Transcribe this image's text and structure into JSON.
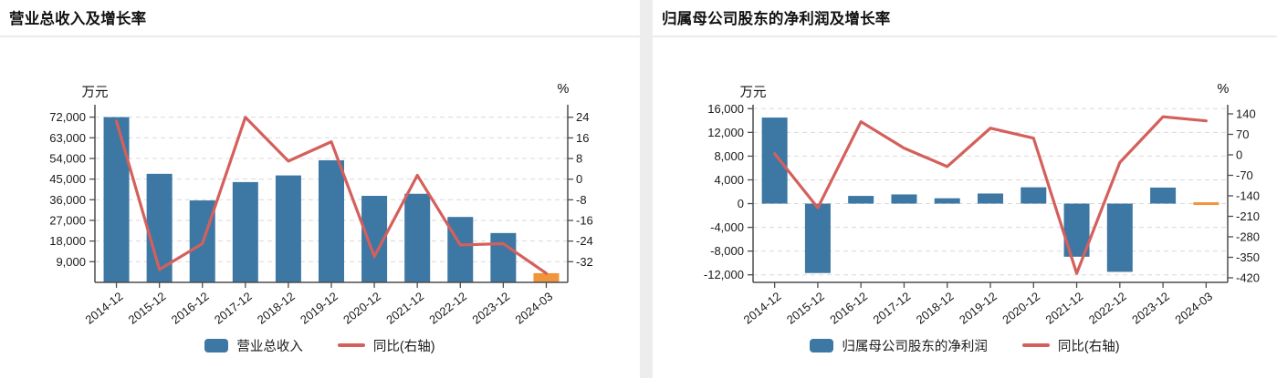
{
  "page": {
    "background": "#ffffff",
    "divider_color": "#ededed"
  },
  "colors": {
    "bar": "#3d77a3",
    "bar_highlight": "#f0953b",
    "line": "#d4605c",
    "grid": "#d9d9d9",
    "axis": "#4d4d4d",
    "text": "#1a1a1a",
    "title": "#111111"
  },
  "charts": [
    {
      "title": "营业总收入及增长率",
      "left_unit": "万元",
      "right_unit": "%",
      "legend": [
        {
          "type": "bar",
          "label": "营业总收入"
        },
        {
          "type": "line",
          "label": "同比(右轴)"
        }
      ],
      "chart_data": {
        "type": "bar+line",
        "categories": [
          "2014-12",
          "2015-12",
          "2016-12",
          "2017-12",
          "2018-12",
          "2019-12",
          "2020-12",
          "2021-12",
          "2022-12",
          "2023-12",
          "2024-03"
        ],
        "series": [
          {
            "name": "营业总收入",
            "type": "bar",
            "axis": "left",
            "unit": "万元",
            "highlight_last": true,
            "values": [
              72000,
              47300,
              35700,
              43700,
              46600,
              53200,
              37700,
              38600,
              28500,
              21500,
              4000
            ]
          },
          {
            "name": "同比(右轴)",
            "type": "line",
            "axis": "right",
            "unit": "%",
            "values": [
              22.5,
              -35,
              -25,
              24,
              7,
              14.5,
              -30,
              1.5,
              -25.5,
              -25,
              -36.5
            ]
          }
        ],
        "left_axis": {
          "label": "万元",
          "ticks": [
            72000,
            63000,
            54000,
            45000,
            36000,
            27000,
            18000,
            9000
          ],
          "min": 0,
          "max": 77400
        },
        "right_axis": {
          "label": "%",
          "ticks": [
            24,
            16,
            8,
            0,
            -8,
            -16,
            -24,
            -32
          ],
          "min": -40,
          "max": 28.85
        },
        "grid": "dashed-horizontal",
        "legend_position": "bottom"
      }
    },
    {
      "title": "归属母公司股东的净利润及增长率",
      "left_unit": "万元",
      "right_unit": "%",
      "legend": [
        {
          "type": "bar",
          "label": "归属母公司股东的净利润"
        },
        {
          "type": "line",
          "label": "同比(右轴)"
        }
      ],
      "chart_data": {
        "type": "bar+line",
        "categories": [
          "2014-12",
          "2015-12",
          "2016-12",
          "2017-12",
          "2018-12",
          "2019-12",
          "2020-12",
          "2021-12",
          "2022-12",
          "2023-12",
          "2024-03"
        ],
        "series": [
          {
            "name": "归属母公司股东的净利润",
            "type": "bar",
            "axis": "left",
            "unit": "万元",
            "highlight_last": true,
            "values": [
              14500,
              -11700,
              1300,
              1550,
              900,
              1700,
              2750,
              -8950,
              -11500,
              2700,
              100
            ]
          },
          {
            "name": "同比(右轴)",
            "type": "line",
            "axis": "right",
            "unit": "%",
            "values": [
              4,
              -181,
              113,
              23,
              -40,
              91,
              57,
              -405,
              -26,
              130,
              116
            ]
          }
        ],
        "left_axis": {
          "label": "万元",
          "ticks": [
            16000,
            12000,
            8000,
            4000,
            0,
            -4000,
            -8000,
            -12000
          ],
          "min": -13270,
          "max": 16660
        },
        "right_axis": {
          "label": "%",
          "ticks": [
            140,
            70,
            0,
            -70,
            -140,
            -210,
            -280,
            -350,
            -420
          ],
          "min": -435.6,
          "max": 171.1
        },
        "grid": "dashed-horizontal",
        "legend_position": "bottom"
      }
    }
  ]
}
